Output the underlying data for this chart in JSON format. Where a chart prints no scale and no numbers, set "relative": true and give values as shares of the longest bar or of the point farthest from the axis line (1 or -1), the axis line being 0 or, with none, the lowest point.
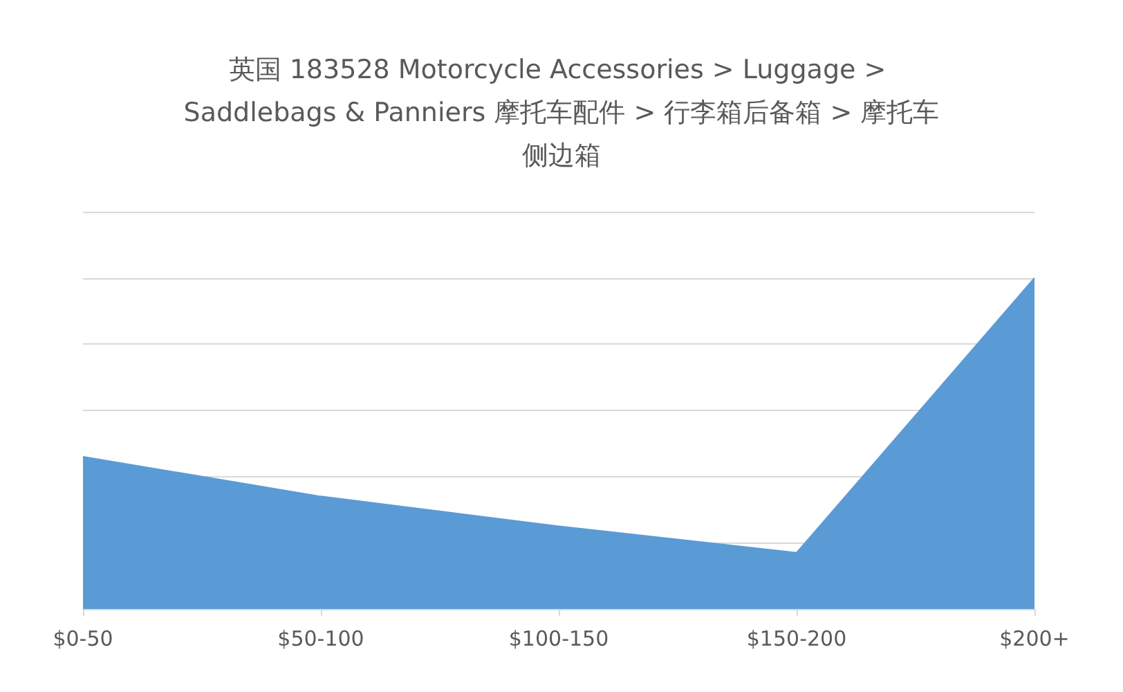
{
  "chart_data": {
    "type": "area",
    "title": "英国 183528 Motorcycle Accessories > Luggage > Saddlebags & Panniers 摩托车配件 > 行李箱后备箱 > 摩托车侧边箱",
    "categories": [
      "$0-50",
      "$50-100",
      "$100-150",
      "$150-200",
      "$200+"
    ],
    "series": [
      {
        "color": "#5b9bd5",
        "values": [
          0.46,
          0.34,
          0.25,
          0.17,
          1
        ]
      }
    ],
    "relative": true,
    "grid": "y",
    "marker": "none"
  }
}
